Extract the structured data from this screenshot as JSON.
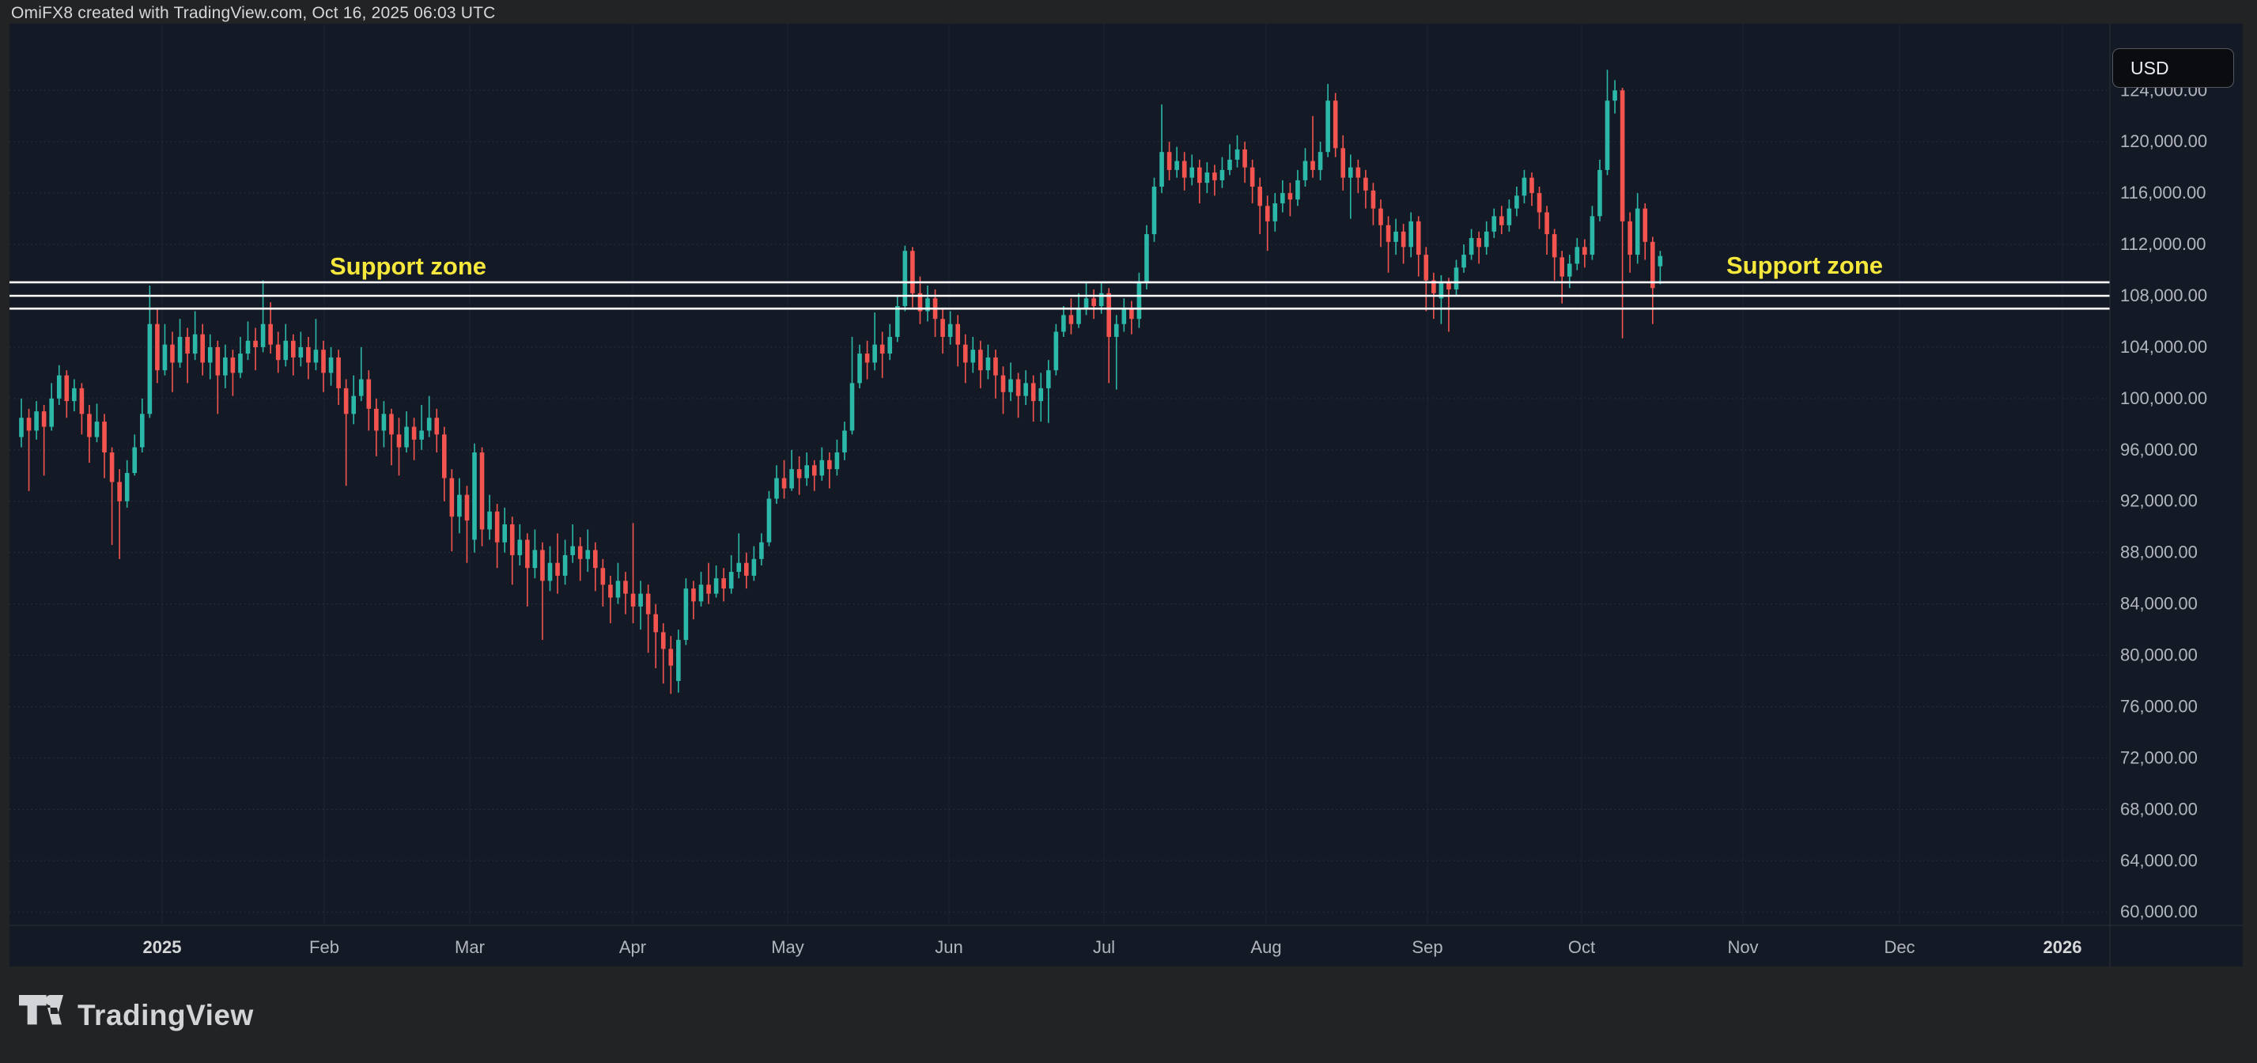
{
  "header": {
    "title": "OmiFX8 created with TradingView.com, Oct 16, 2025 06:03 UTC"
  },
  "price_scale": {
    "currency_button": "USD",
    "ticks": [
      "124,000.00",
      "120,000.00",
      "116,000.00",
      "112,000.00",
      "108,000.00",
      "104,000.00",
      "100,000.00",
      "96,000.00",
      "92,000.00",
      "88,000.00",
      "84,000.00",
      "80,000.00",
      "76,000.00",
      "72,000.00",
      "68,000.00",
      "64,000.00",
      "60,000.00"
    ]
  },
  "time_scale": {
    "labels": [
      "2025",
      "Feb",
      "Mar",
      "Apr",
      "May",
      "Jun",
      "Jul",
      "Aug",
      "Sep",
      "Oct",
      "Nov",
      "Dec",
      "2026"
    ],
    "bold_labels": [
      "2025",
      "2026"
    ]
  },
  "annotations": {
    "support_zone_left_label": "Support zone",
    "support_zone_right_label": "Support zone",
    "support_lines_usd": [
      109050,
      108000,
      107000
    ]
  },
  "branding": {
    "logo_text": "TradingView"
  },
  "colors": {
    "up_candle": "#2cb8a8",
    "down_candle": "#f3544f",
    "support_line": "#ffffff",
    "annotation_yellow": "#f5e73b",
    "chart_background": "#141a25",
    "outer_background": "#222324",
    "axis_text": "#b2b5be",
    "axis_text_bright": "#d6d7d9",
    "grid_line": "#1c2433",
    "separator": "#2a2e39"
  },
  "chart_data": {
    "type": "candlestick",
    "currency": "USD",
    "title": "OmiFX8 created with TradingView.com, Oct 16, 2025 06:03 UTC",
    "price_unit_usd": 100,
    "note": "OHLC values are in units of 100 USD (e.g. 985 = 98,500 USD). Daily-interval candles, Dec 2024 through Oct 16 2025.",
    "y_axis": {
      "tick_min": 60000,
      "tick_max": 124000,
      "tick_step": 4000,
      "visible_range_usd": [
        58000,
        129200
      ]
    },
    "x_axis": {
      "labels": [
        "2025",
        "Feb",
        "Mar",
        "Apr",
        "May",
        "Jun",
        "Jul",
        "Aug",
        "Sep",
        "Oct",
        "Nov",
        "Dec",
        "2026"
      ]
    },
    "legend_position": "none",
    "grid": true,
    "candles": [
      [
        970,
        1000,
        962,
        985
      ],
      [
        985,
        992,
        928,
        975
      ],
      [
        975,
        998,
        968,
        990
      ],
      [
        990,
        995,
        940,
        978
      ],
      [
        978,
        1012,
        975,
        1000
      ],
      [
        1000,
        1026,
        995,
        1018
      ],
      [
        1018,
        1022,
        985,
        998
      ],
      [
        998,
        1015,
        990,
        1008
      ],
      [
        1008,
        1012,
        972,
        988
      ],
      [
        988,
        995,
        950,
        970
      ],
      [
        970,
        996,
        966,
        982
      ],
      [
        982,
        988,
        938,
        958
      ],
      [
        958,
        962,
        886,
        935
      ],
      [
        935,
        945,
        875,
        920
      ],
      [
        920,
        952,
        915,
        942
      ],
      [
        942,
        972,
        940,
        962
      ],
      [
        962,
        1000,
        958,
        988
      ],
      [
        988,
        1088,
        985,
        1058
      ],
      [
        1058,
        1070,
        1012,
        1022
      ],
      [
        1022,
        1058,
        1018,
        1042
      ],
      [
        1042,
        1052,
        1005,
        1028
      ],
      [
        1028,
        1062,
        1024,
        1048
      ],
      [
        1048,
        1055,
        1012,
        1035
      ],
      [
        1035,
        1068,
        1030,
        1050
      ],
      [
        1050,
        1058,
        1018,
        1028
      ],
      [
        1028,
        1050,
        1015,
        1040
      ],
      [
        1040,
        1045,
        988,
        1018
      ],
      [
        1018,
        1042,
        1008,
        1032
      ],
      [
        1032,
        1038,
        1002,
        1020
      ],
      [
        1020,
        1048,
        1016,
        1035
      ],
      [
        1035,
        1060,
        1030,
        1045
      ],
      [
        1045,
        1055,
        1022,
        1040
      ],
      [
        1040,
        1092,
        1036,
        1058
      ],
      [
        1058,
        1075,
        1035,
        1042
      ],
      [
        1042,
        1052,
        1020,
        1030
      ],
      [
        1030,
        1058,
        1025,
        1045
      ],
      [
        1045,
        1050,
        1018,
        1032
      ],
      [
        1032,
        1052,
        1025,
        1040
      ],
      [
        1040,
        1048,
        1015,
        1028
      ],
      [
        1028,
        1062,
        1022,
        1038
      ],
      [
        1038,
        1045,
        1005,
        1020
      ],
      [
        1020,
        1040,
        1010,
        1032
      ],
      [
        1032,
        1038,
        995,
        1008
      ],
      [
        1008,
        1015,
        932,
        988
      ],
      [
        988,
        1018,
        980,
        1002
      ],
      [
        1002,
        1040,
        998,
        1015
      ],
      [
        1015,
        1022,
        975,
        992
      ],
      [
        992,
        1000,
        955,
        975
      ],
      [
        975,
        998,
        962,
        988
      ],
      [
        988,
        992,
        948,
        972
      ],
      [
        972,
        985,
        940,
        962
      ],
      [
        962,
        990,
        958,
        978
      ],
      [
        978,
        985,
        952,
        968
      ],
      [
        968,
        995,
        960,
        975
      ],
      [
        975,
        1002,
        970,
        985
      ],
      [
        985,
        992,
        958,
        972
      ],
      [
        972,
        978,
        920,
        938
      ],
      [
        938,
        945,
        881,
        908
      ],
      [
        908,
        938,
        895,
        925
      ],
      [
        925,
        932,
        872,
        905
      ],
      [
        890,
        965,
        880,
        958
      ],
      [
        958,
        962,
        885,
        898
      ],
      [
        898,
        925,
        890,
        912
      ],
      [
        912,
        918,
        868,
        888
      ],
      [
        888,
        915,
        880,
        902
      ],
      [
        902,
        908,
        855,
        878
      ],
      [
        878,
        902,
        870,
        890
      ],
      [
        890,
        895,
        838,
        868
      ],
      [
        868,
        898,
        860,
        882
      ],
      [
        882,
        888,
        812,
        858
      ],
      [
        858,
        885,
        850,
        872
      ],
      [
        872,
        895,
        848,
        862
      ],
      [
        862,
        890,
        855,
        878
      ],
      [
        878,
        902,
        872,
        885
      ],
      [
        885,
        892,
        858,
        875
      ],
      [
        875,
        898,
        865,
        882
      ],
      [
        882,
        888,
        850,
        868
      ],
      [
        868,
        875,
        838,
        855
      ],
      [
        855,
        862,
        825,
        845
      ],
      [
        845,
        872,
        840,
        858
      ],
      [
        858,
        865,
        832,
        848
      ],
      [
        848,
        903,
        825,
        838
      ],
      [
        838,
        858,
        820,
        848
      ],
      [
        848,
        855,
        802,
        832
      ],
      [
        832,
        840,
        790,
        818
      ],
      [
        818,
        825,
        778,
        805
      ],
      [
        805,
        815,
        770,
        792
      ],
      [
        780,
        820,
        771,
        812
      ],
      [
        812,
        860,
        808,
        852
      ],
      [
        852,
        858,
        828,
        842
      ],
      [
        842,
        865,
        838,
        855
      ],
      [
        855,
        872,
        840,
        848
      ],
      [
        848,
        870,
        845,
        860
      ],
      [
        860,
        868,
        842,
        852
      ],
      [
        852,
        878,
        848,
        865
      ],
      [
        865,
        895,
        860,
        872
      ],
      [
        872,
        880,
        852,
        862
      ],
      [
        862,
        885,
        858,
        875
      ],
      [
        875,
        895,
        870,
        888
      ],
      [
        888,
        928,
        885,
        922
      ],
      [
        922,
        948,
        918,
        938
      ],
      [
        938,
        952,
        922,
        930
      ],
      [
        930,
        960,
        928,
        945
      ],
      [
        945,
        955,
        925,
        938
      ],
      [
        938,
        958,
        932,
        948
      ],
      [
        948,
        952,
        928,
        940
      ],
      [
        940,
        962,
        936,
        952
      ],
      [
        952,
        958,
        930,
        945
      ],
      [
        945,
        968,
        940,
        958
      ],
      [
        958,
        982,
        952,
        975
      ],
      [
        975,
        1048,
        972,
        1012
      ],
      [
        1012,
        1042,
        1008,
        1035
      ],
      [
        1035,
        1045,
        1015,
        1028
      ],
      [
        1028,
        1067,
        1022,
        1042
      ],
      [
        1042,
        1052,
        1016,
        1035
      ],
      [
        1035,
        1058,
        1030,
        1048
      ],
      [
        1048,
        1080,
        1044,
        1072
      ],
      [
        1072,
        1119,
        1068,
        1115
      ],
      [
        1115,
        1118,
        1070,
        1082
      ],
      [
        1082,
        1095,
        1058,
        1068
      ],
      [
        1068,
        1088,
        1060,
        1078
      ],
      [
        1078,
        1085,
        1048,
        1062
      ],
      [
        1062,
        1070,
        1035,
        1048
      ],
      [
        1048,
        1068,
        1042,
        1058
      ],
      [
        1058,
        1065,
        1025,
        1042
      ],
      [
        1042,
        1050,
        1012,
        1028
      ],
      [
        1028,
        1048,
        1020,
        1038
      ],
      [
        1038,
        1045,
        1008,
        1022
      ],
      [
        1022,
        1042,
        1015,
        1032
      ],
      [
        1032,
        1038,
        1000,
        1018
      ],
      [
        1018,
        1025,
        988,
        1005
      ],
      [
        1005,
        1028,
        998,
        1015
      ],
      [
        1015,
        1020,
        985,
        1002
      ],
      [
        1002,
        1022,
        995,
        1012
      ],
      [
        1012,
        1018,
        982,
        998
      ],
      [
        998,
        1020,
        982,
        1008
      ],
      [
        1008,
        1030,
        981,
        1022
      ],
      [
        1022,
        1058,
        1018,
        1052
      ],
      [
        1052,
        1072,
        1048,
        1065
      ],
      [
        1065,
        1078,
        1050,
        1058
      ],
      [
        1058,
        1082,
        1055,
        1070
      ],
      [
        1070,
        1090,
        1065,
        1078
      ],
      [
        1078,
        1085,
        1062,
        1072
      ],
      [
        1072,
        1090,
        1066,
        1082
      ],
      [
        1082,
        1086,
        1012,
        1048
      ],
      [
        1048,
        1065,
        1007,
        1058
      ],
      [
        1058,
        1078,
        1052,
        1070
      ],
      [
        1070,
        1076,
        1050,
        1062
      ],
      [
        1062,
        1098,
        1055,
        1090
      ],
      [
        1090,
        1135,
        1085,
        1128
      ],
      [
        1128,
        1172,
        1122,
        1165
      ],
      [
        1165,
        1229,
        1160,
        1192
      ],
      [
        1192,
        1200,
        1170,
        1178
      ],
      [
        1178,
        1196,
        1172,
        1185
      ],
      [
        1185,
        1192,
        1162,
        1172
      ],
      [
        1172,
        1190,
        1166,
        1180
      ],
      [
        1180,
        1186,
        1152,
        1168
      ],
      [
        1168,
        1184,
        1160,
        1176
      ],
      [
        1176,
        1182,
        1158,
        1170
      ],
      [
        1170,
        1188,
        1164,
        1178
      ],
      [
        1178,
        1198,
        1174,
        1186
      ],
      [
        1186,
        1205,
        1180,
        1194
      ],
      [
        1194,
        1200,
        1168,
        1180
      ],
      [
        1180,
        1186,
        1152,
        1165
      ],
      [
        1165,
        1172,
        1128,
        1150
      ],
      [
        1150,
        1158,
        1115,
        1138
      ],
      [
        1138,
        1160,
        1130,
        1152
      ],
      [
        1152,
        1170,
        1145,
        1160
      ],
      [
        1160,
        1168,
        1142,
        1155
      ],
      [
        1155,
        1178,
        1150,
        1170
      ],
      [
        1170,
        1195,
        1165,
        1185
      ],
      [
        1185,
        1220,
        1172,
        1178
      ],
      [
        1178,
        1200,
        1170,
        1192
      ],
      [
        1192,
        1245,
        1188,
        1232
      ],
      [
        1232,
        1238,
        1188,
        1195
      ],
      [
        1195,
        1205,
        1162,
        1172
      ],
      [
        1172,
        1190,
        1140,
        1180
      ],
      [
        1180,
        1186,
        1160,
        1172
      ],
      [
        1172,
        1178,
        1148,
        1162
      ],
      [
        1162,
        1168,
        1135,
        1148
      ],
      [
        1148,
        1155,
        1118,
        1135
      ],
      [
        1135,
        1142,
        1098,
        1122
      ],
      [
        1122,
        1140,
        1112,
        1130
      ],
      [
        1130,
        1136,
        1105,
        1118
      ],
      [
        1118,
        1145,
        1110,
        1138
      ],
      [
        1138,
        1142,
        1095,
        1112
      ],
      [
        1112,
        1118,
        1068,
        1092
      ],
      [
        1092,
        1098,
        1062,
        1082
      ],
      [
        1078,
        1096,
        1058,
        1090
      ],
      [
        1090,
        1094,
        1052,
        1085
      ],
      [
        1085,
        1108,
        1080,
        1102
      ],
      [
        1102,
        1120,
        1098,
        1112
      ],
      [
        1112,
        1132,
        1108,
        1125
      ],
      [
        1125,
        1130,
        1105,
        1118
      ],
      [
        1118,
        1138,
        1112,
        1130
      ],
      [
        1130,
        1148,
        1125,
        1142
      ],
      [
        1142,
        1150,
        1128,
        1135
      ],
      [
        1135,
        1155,
        1130,
        1148
      ],
      [
        1148,
        1165,
        1142,
        1158
      ],
      [
        1158,
        1178,
        1152,
        1172
      ],
      [
        1172,
        1176,
        1150,
        1160
      ],
      [
        1160,
        1165,
        1132,
        1145
      ],
      [
        1145,
        1150,
        1112,
        1128
      ],
      [
        1128,
        1132,
        1092,
        1110
      ],
      [
        1110,
        1115,
        1074,
        1095
      ],
      [
        1095,
        1112,
        1086,
        1105
      ],
      [
        1105,
        1125,
        1100,
        1118
      ],
      [
        1118,
        1124,
        1102,
        1112
      ],
      [
        1112,
        1150,
        1108,
        1142
      ],
      [
        1142,
        1186,
        1138,
        1178
      ],
      [
        1178,
        1256,
        1174,
        1232
      ],
      [
        1232,
        1248,
        1222,
        1240
      ],
      [
        1240,
        1242,
        1047,
        1138
      ],
      [
        1138,
        1145,
        1098,
        1112
      ],
      [
        1112,
        1160,
        1105,
        1148
      ],
      [
        1148,
        1152,
        1108,
        1122
      ],
      [
        1122,
        1126,
        1058,
        1086
      ],
      [
        1103,
        1115,
        1089,
        1111
      ]
    ]
  }
}
